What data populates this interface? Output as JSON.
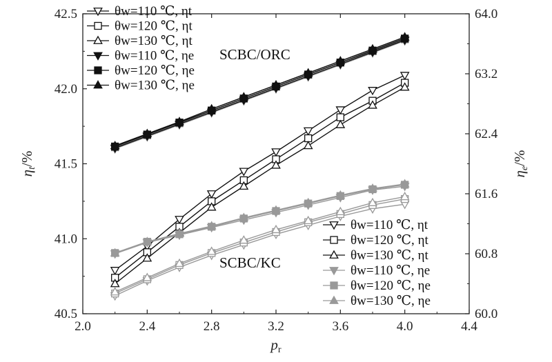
{
  "chart_data": {
    "type": "line",
    "xlabel": "p_r",
    "y1label": "η_t/%",
    "y2label": "η_e/%",
    "xlim": [
      2.0,
      4.4
    ],
    "y1lim": [
      40.5,
      42.5
    ],
    "y2lim": [
      60.0,
      64.0
    ],
    "xticks": [
      "2.0",
      "2.4",
      "2.8",
      "3.2",
      "3.6",
      "4.0",
      "4.4"
    ],
    "y1ticks": [
      "40.5",
      "41.0",
      "41.5",
      "42.0",
      "42.5"
    ],
    "y2ticks": [
      "60.0",
      "60.8",
      "61.6",
      "62.4",
      "63.2",
      "64.0"
    ],
    "annotations": [
      {
        "id": "orc",
        "text": "SCBC/ORC"
      },
      {
        "id": "kc",
        "text": "SCBC/KC"
      }
    ],
    "x": [
      2.2,
      2.4,
      2.6,
      2.8,
      3.0,
      3.2,
      3.4,
      3.6,
      3.8,
      4.0
    ],
    "series": [
      {
        "id": "orc_t110",
        "name": "θw=110 ℃, ηt",
        "axis": "left",
        "marker": "triangle-down",
        "filled": false,
        "color": "#888888",
        "values": [
          41.6,
          41.68,
          41.76,
          41.84,
          41.92,
          42.0,
          42.08,
          42.16,
          42.24,
          42.32
        ]
      },
      {
        "id": "orc_t120",
        "name": "θw=120 ℃, ηt",
        "axis": "left",
        "marker": "square",
        "filled": false,
        "color": "#888888",
        "values": [
          41.61,
          41.69,
          41.77,
          41.855,
          41.935,
          42.015,
          42.095,
          42.175,
          42.25,
          42.33
        ]
      },
      {
        "id": "orc_t130",
        "name": "θw=130 ℃, ηt",
        "axis": "left",
        "marker": "triangle-up",
        "filled": false,
        "color": "#888888",
        "values": [
          41.62,
          41.7,
          41.78,
          41.865,
          41.945,
          42.025,
          42.105,
          42.185,
          42.26,
          42.34
        ]
      },
      {
        "id": "orc_e110",
        "name": "θw=110 ℃, ηe",
        "axis": "left",
        "marker": "triangle-down",
        "filled": true,
        "color": "#111111",
        "values": [
          41.605,
          41.685,
          41.765,
          41.845,
          41.925,
          42.005,
          42.085,
          42.165,
          42.245,
          42.325
        ]
      },
      {
        "id": "orc_e120",
        "name": "θw=120 ℃, ηe",
        "axis": "left",
        "marker": "square",
        "filled": true,
        "color": "#111111",
        "values": [
          41.615,
          41.695,
          41.775,
          41.855,
          41.935,
          42.015,
          42.095,
          42.175,
          42.255,
          42.335
        ]
      },
      {
        "id": "orc_e130",
        "name": "θw=130 ℃, ηe",
        "axis": "left",
        "marker": "triangle-up",
        "filled": true,
        "color": "#111111",
        "values": [
          41.62,
          41.7,
          41.78,
          41.865,
          41.945,
          42.025,
          42.105,
          42.185,
          42.265,
          42.345
        ]
      },
      {
        "id": "kc_t110",
        "name": "θw=110 ℃, ηt",
        "axis": "left",
        "marker": "triangle-down",
        "filled": false,
        "color": "#111111",
        "values": [
          40.79,
          40.95,
          41.13,
          41.3,
          41.45,
          41.58,
          41.72,
          41.86,
          41.99,
          42.09
        ]
      },
      {
        "id": "kc_t120",
        "name": "θw=120 ℃, ηt",
        "axis": "left",
        "marker": "square",
        "filled": false,
        "color": "#111111",
        "values": [
          40.74,
          40.91,
          41.08,
          41.25,
          41.39,
          41.53,
          41.67,
          41.81,
          41.92,
          42.04
        ]
      },
      {
        "id": "kc_t130",
        "name": "θw=130 ℃, ηt",
        "axis": "left",
        "marker": "triangle-up",
        "filled": false,
        "color": "#111111",
        "values": [
          40.7,
          40.87,
          41.04,
          41.21,
          41.35,
          41.49,
          41.62,
          41.76,
          41.89,
          42.01
        ]
      },
      {
        "id": "kc_e110",
        "name": "θw=110 ℃, ηe",
        "axis": "right",
        "marker": "triangle-down",
        "filled": true,
        "color": "#999999",
        "values": [
          60.8,
          60.95,
          61.05,
          61.15,
          61.25,
          61.35,
          61.45,
          61.55,
          61.65,
          61.7
        ]
      },
      {
        "id": "kc_e120",
        "name": "θw=120 ℃, ηe",
        "axis": "right",
        "marker": "square",
        "filled": true,
        "color": "#999999",
        "values": [
          60.81,
          60.96,
          61.06,
          61.16,
          61.27,
          61.37,
          61.47,
          61.57,
          61.66,
          61.72
        ]
      },
      {
        "id": "kc_e130",
        "name": "θw=130 ℃, ηe",
        "axis": "right",
        "marker": "triangle-up",
        "filled": true,
        "color": "#999999",
        "values": [
          60.81,
          60.96,
          61.07,
          61.17,
          61.28,
          61.38,
          61.48,
          61.58,
          61.67,
          61.73
        ]
      },
      {
        "id": "kc_lower_t110",
        "name": "θw=110 ℃, ηt",
        "axis": "left",
        "marker": "triangle-down",
        "filled": false,
        "color": "#999999",
        "values": [
          40.62,
          40.72,
          40.81,
          40.89,
          40.96,
          41.03,
          41.09,
          41.15,
          41.2,
          41.23
        ]
      },
      {
        "id": "kc_lower_t120",
        "name": "θw=120 ℃, ηt",
        "axis": "left",
        "marker": "square",
        "filled": false,
        "color": "#999999",
        "values": [
          40.635,
          40.73,
          40.825,
          40.905,
          40.975,
          41.045,
          41.11,
          41.165,
          41.225,
          41.265
        ]
      },
      {
        "id": "kc_lower_t130",
        "name": "θw=130 ℃, ηt",
        "axis": "left",
        "marker": "triangle-up",
        "filled": false,
        "color": "#999999",
        "values": [
          40.645,
          40.74,
          40.835,
          40.915,
          40.99,
          41.06,
          41.12,
          41.18,
          41.24,
          41.28
        ]
      }
    ],
    "legend_top": [
      {
        "label": "θw=110 ℃, ηt",
        "marker": "triangle-down",
        "filled": false
      },
      {
        "label": "θw=120 ℃, ηt",
        "marker": "square",
        "filled": false
      },
      {
        "label": "θw=130 ℃, ηt",
        "marker": "triangle-up",
        "filled": false
      },
      {
        "label": "θw=110 ℃, ηe",
        "marker": "triangle-down",
        "filled": true
      },
      {
        "label": "θw=120 ℃, ηe",
        "marker": "square",
        "filled": true
      },
      {
        "label": "θw=130 ℃, ηe",
        "marker": "triangle-up",
        "filled": true
      }
    ],
    "legend_bottom": [
      {
        "label": "θw=110 ℃, ηt",
        "marker": "triangle-down",
        "filled": false
      },
      {
        "label": "θw=120 ℃, ηt",
        "marker": "square",
        "filled": false
      },
      {
        "label": "θw=130 ℃, ηt",
        "marker": "triangle-up",
        "filled": false
      },
      {
        "label": "θw=110 ℃, ηe",
        "marker": "triangle-down",
        "filled": true
      },
      {
        "label": "θw=120 ℃, ηe",
        "marker": "square",
        "filled": true
      },
      {
        "label": "θw=130 ℃, ηe",
        "marker": "triangle-up",
        "filled": true
      }
    ],
    "legend_placement_top": "top-left",
    "legend_placement_bottom": "bottom-right",
    "grid": false
  }
}
